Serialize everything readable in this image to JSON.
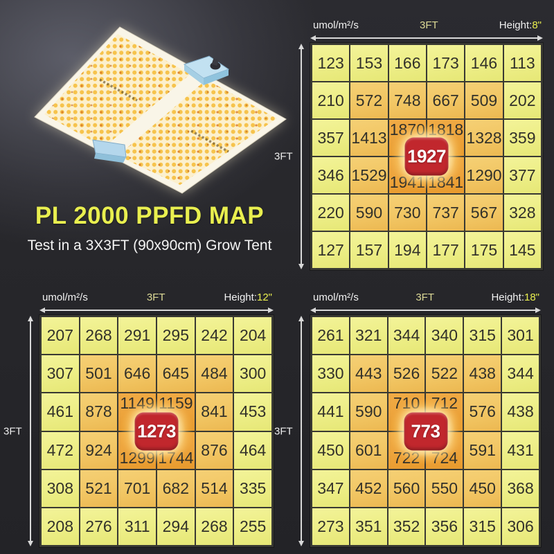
{
  "title": "PL 2000 PPFD MAP",
  "subtitle": "Test in a 3X3FT (90x90cm) Grow Tent",
  "colors": {
    "title_yellow": "#e9ef4f",
    "accent_yellow": "#dcd996",
    "badge_red": "#c1272d",
    "gridline": "#393933",
    "arrow": "#d9d9d9",
    "cell_text": "#32312a"
  },
  "chart_data": [
    {
      "type": "heatmap",
      "title": "PPFD at hanging height 8 inches",
      "units": "umol/m²/s",
      "x_axis_label": "3FT",
      "y_axis_label": "3FT",
      "height_prefix": "Height:",
      "height_value": "8\"",
      "peak_value": 1927,
      "values": [
        [
          123,
          153,
          166,
          173,
          146,
          113
        ],
        [
          210,
          572,
          748,
          667,
          509,
          202
        ],
        [
          357,
          1413,
          1870,
          1818,
          1328,
          359
        ],
        [
          346,
          1529,
          1941,
          1841,
          1290,
          377
        ],
        [
          220,
          590,
          730,
          737,
          567,
          328
        ],
        [
          127,
          157,
          194,
          177,
          175,
          145
        ]
      ]
    },
    {
      "type": "heatmap",
      "title": "PPFD at hanging height 12 inches",
      "units": "umol/m²/s",
      "x_axis_label": "3FT",
      "y_axis_label": "3FT",
      "height_prefix": "Height:",
      "height_value": "12\"",
      "peak_value": 1273,
      "values": [
        [
          207,
          268,
          291,
          295,
          242,
          204
        ],
        [
          307,
          501,
          646,
          645,
          484,
          300
        ],
        [
          461,
          878,
          1149,
          1159,
          841,
          453
        ],
        [
          472,
          924,
          1299,
          1744,
          876,
          464
        ],
        [
          308,
          521,
          701,
          682,
          514,
          335
        ],
        [
          208,
          276,
          311,
          294,
          268,
          255
        ]
      ]
    },
    {
      "type": "heatmap",
      "title": "PPFD at hanging height 18 inches",
      "units": "umol/m²/s",
      "x_axis_label": "3FT",
      "y_axis_label": "3FT",
      "height_prefix": "Height:",
      "height_value": "18\"",
      "peak_value": 773,
      "values": [
        [
          261,
          321,
          344,
          340,
          315,
          301
        ],
        [
          330,
          443,
          526,
          522,
          438,
          344
        ],
        [
          441,
          590,
          710,
          712,
          576,
          438
        ],
        [
          450,
          601,
          722,
          724,
          591,
          431
        ],
        [
          347,
          452,
          560,
          550,
          450,
          368
        ],
        [
          273,
          351,
          352,
          356,
          315,
          306
        ]
      ]
    }
  ]
}
